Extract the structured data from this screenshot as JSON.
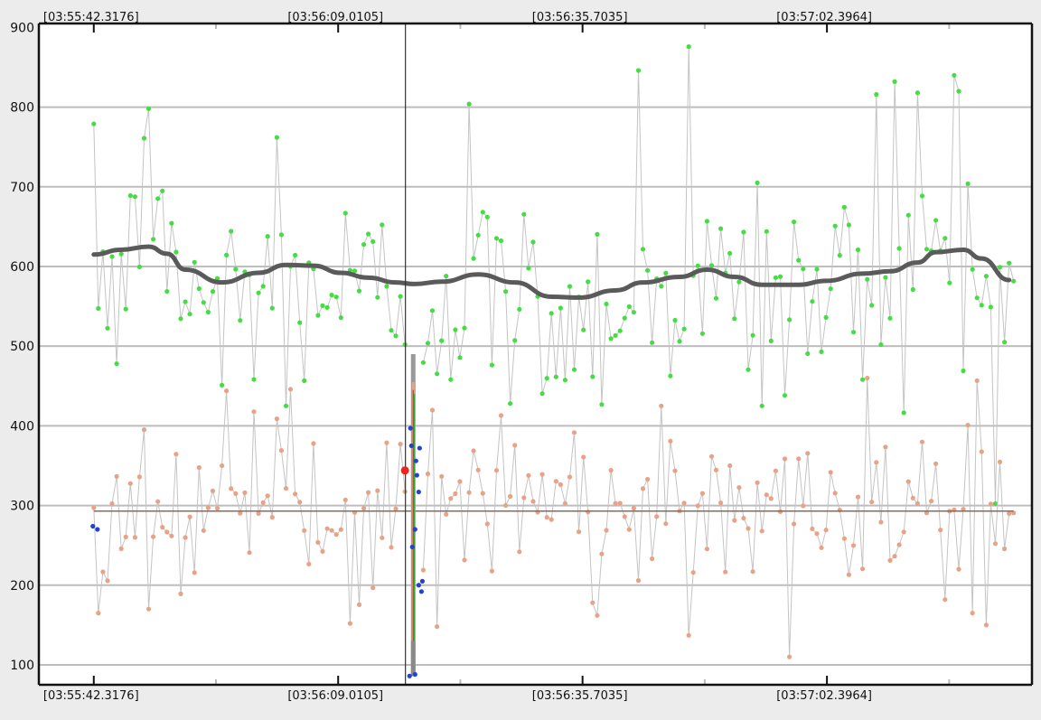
{
  "chart_data": {
    "type": "scatter",
    "x_ticks": [
      "[03:55:42.3176]",
      "[03:56:09.0105]",
      "[03:56:35.7035]",
      "[03:57:02.3964]"
    ],
    "y_ticks": [
      100,
      200,
      300,
      400,
      500,
      600,
      700,
      800,
      900
    ],
    "ylim": [
      75,
      905
    ],
    "xlim_seconds": [
      -6,
      102.5
    ],
    "grid": true,
    "cursor_x_seconds": 34,
    "series": [
      {
        "role": "upper-scatter",
        "color": "#44dd44",
        "line_color": "#c4c4c4",
        "start_s": 0,
        "step_s": 0.5,
        "seed": 12345,
        "base_curve": [
          [
            0,
            615
          ],
          [
            6,
            625
          ],
          [
            10,
            595
          ],
          [
            14,
            580
          ],
          [
            21,
            602
          ],
          [
            27,
            592
          ],
          [
            35,
            578
          ],
          [
            42,
            590
          ],
          [
            51,
            560
          ],
          [
            63,
            595
          ],
          [
            73,
            575
          ],
          [
            86,
            597
          ],
          [
            92,
            621
          ],
          [
            100,
            583
          ]
        ],
        "spread": 85,
        "spikes": [
          [
            59.3,
            846
          ],
          [
            64.8,
            876
          ],
          [
            40.9,
            804
          ],
          [
            87.5,
            832
          ],
          [
            93.8,
            840
          ],
          [
            6.0,
            798
          ],
          [
            5.3,
            761
          ],
          [
            20.0,
            762
          ],
          [
            72.3,
            705
          ],
          [
            90.2,
            818
          ],
          [
            85.7,
            816
          ],
          [
            94.6,
            820
          ],
          [
            73.0,
            425
          ],
          [
            95.2,
            469
          ],
          [
            2.5,
            478
          ],
          [
            45.7,
            428
          ],
          [
            14.2,
            451
          ],
          [
            21.0,
            425
          ]
        ],
        "values_note": ""
      },
      {
        "role": "lower-scatter",
        "color": "#e8a386",
        "line_color": "#c4c4c4",
        "start_s": 0,
        "step_s": 0.5,
        "seed": 777,
        "base_curve": [
          [
            0,
            295
          ],
          [
            100,
            295
          ]
        ],
        "spread": 70,
        "spikes": [
          [
            14.3,
            444
          ],
          [
            21.7,
            446
          ],
          [
            27.8,
            445
          ],
          [
            44.6,
            413
          ],
          [
            61.9,
            425
          ],
          [
            84.6,
            460
          ],
          [
            64.8,
            137
          ],
          [
            76.2,
            110
          ],
          [
            97.7,
            150
          ],
          [
            37.7,
            148
          ],
          [
            0.5,
            165
          ],
          [
            6.1,
            170
          ],
          [
            28.0,
            152
          ],
          [
            55.0,
            162
          ],
          [
            96.0,
            165
          ]
        ]
      }
    ],
    "trend_line": {
      "color": "#5a5a5a",
      "points": [
        [
          0,
          615
        ],
        [
          3,
          621
        ],
        [
          6,
          625
        ],
        [
          8,
          616
        ],
        [
          10,
          596
        ],
        [
          14,
          580
        ],
        [
          18,
          592
        ],
        [
          21,
          602
        ],
        [
          24,
          601
        ],
        [
          27,
          592
        ],
        [
          30,
          586
        ],
        [
          33,
          580
        ],
        [
          35,
          578
        ],
        [
          38,
          581
        ],
        [
          42,
          590
        ],
        [
          46,
          580
        ],
        [
          50,
          562
        ],
        [
          53,
          561
        ],
        [
          57,
          570
        ],
        [
          60,
          580
        ],
        [
          64,
          587
        ],
        [
          67,
          596
        ],
        [
          70,
          587
        ],
        [
          73,
          577
        ],
        [
          77,
          577
        ],
        [
          80,
          582
        ],
        [
          84,
          591
        ],
        [
          87,
          594
        ],
        [
          90,
          605
        ],
        [
          92,
          618
        ],
        [
          95,
          621
        ],
        [
          97,
          610
        ],
        [
          100,
          583
        ]
      ]
    },
    "mean_line": {
      "color": "#8a6a5a",
      "value": 293,
      "x_start_s": 0,
      "x_end_s": 100.5
    },
    "blue_points": {
      "color": "#2244cc",
      "points": [
        [
          -0.1,
          274
        ],
        [
          0.4,
          270
        ],
        [
          34.6,
          397
        ],
        [
          34.7,
          375
        ],
        [
          35.2,
          356
        ],
        [
          35.3,
          338
        ],
        [
          35.5,
          317
        ],
        [
          35.1,
          270
        ],
        [
          34.8,
          248
        ],
        [
          35.5,
          200
        ],
        [
          35.8,
          192
        ],
        [
          35.9,
          205
        ],
        [
          35.6,
          372
        ],
        [
          34.5,
          86
        ],
        [
          35.1,
          88
        ]
      ]
    },
    "highlight_point": {
      "color": "#ee2222",
      "x_s": 34.0,
      "y": 344
    },
    "vertical_bar": {
      "x_s": 34.9,
      "y_top": 490,
      "y_bottom": 86,
      "colors": [
        "#888888",
        "#e8a386",
        "#cc3333",
        "#33aa33"
      ]
    }
  }
}
